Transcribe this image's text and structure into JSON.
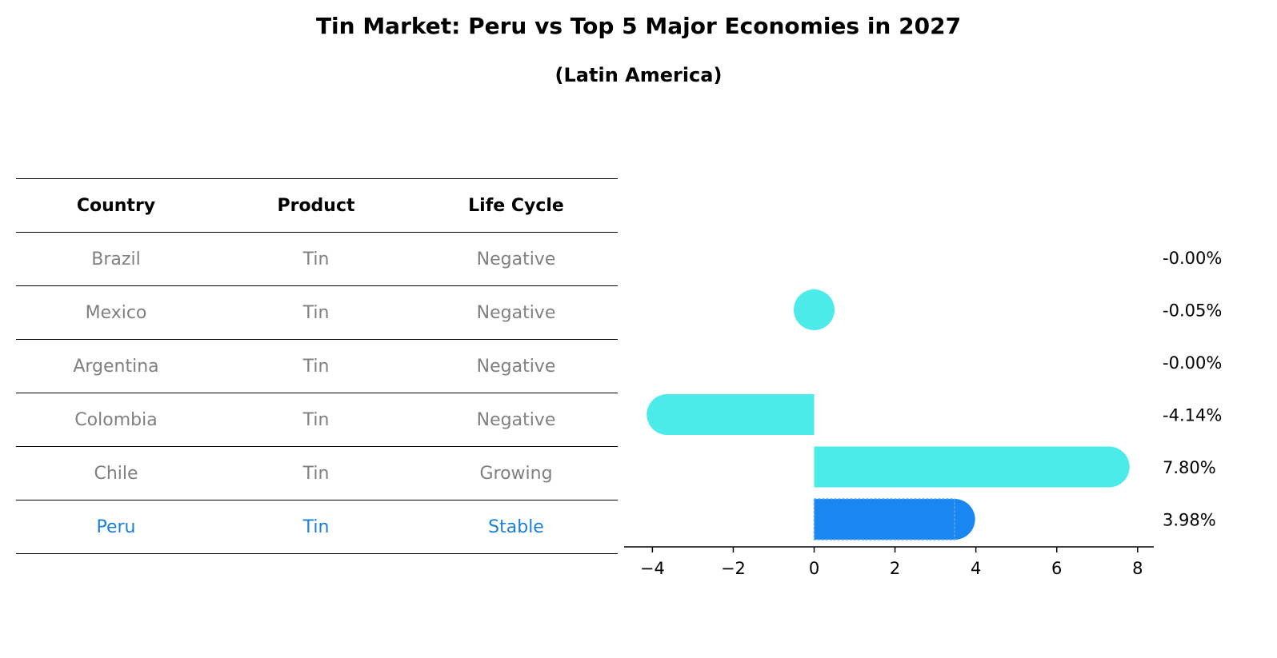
{
  "title": "Tin Market: Peru vs Top 5 Major Economies in 2027",
  "subtitle": "(Latin America)",
  "table": {
    "headers": [
      "Country",
      "Product",
      "Life Cycle"
    ],
    "rows": [
      [
        "Brazil",
        "Tin",
        "Negative"
      ],
      [
        "Mexico",
        "Tin",
        "Negative"
      ],
      [
        "Argentina",
        "Tin",
        "Negative"
      ],
      [
        "Colombia",
        "Tin",
        "Negative"
      ],
      [
        "Chile",
        "Tin",
        "Growing"
      ],
      [
        "Peru",
        "Tin",
        "Stable"
      ]
    ],
    "highlight_color": "#1a7fd6",
    "text_color": "#808080"
  },
  "chart_data": {
    "type": "bar",
    "orientation": "horizontal",
    "categories": [
      "Brazil",
      "Mexico",
      "Argentina",
      "Colombia",
      "Chile",
      "Peru"
    ],
    "values": [
      0.0,
      -0.05,
      0.0,
      -4.14,
      7.8,
      3.98
    ],
    "value_labels": [
      "-0.00%",
      "-0.05%",
      "-0.00%",
      "-4.14%",
      "7.80%",
      "3.98%"
    ],
    "xlim": [
      -4.7,
      8.4
    ],
    "xticks": [
      -4,
      -2,
      0,
      2,
      4,
      6,
      8
    ],
    "xtick_labels": [
      "−4",
      "−2",
      "0",
      "2",
      "4",
      "6",
      "8"
    ],
    "bar_color": "#4deaea",
    "highlight_color": "#1a86f0",
    "highlight_category": "Peru",
    "grid": false
  }
}
